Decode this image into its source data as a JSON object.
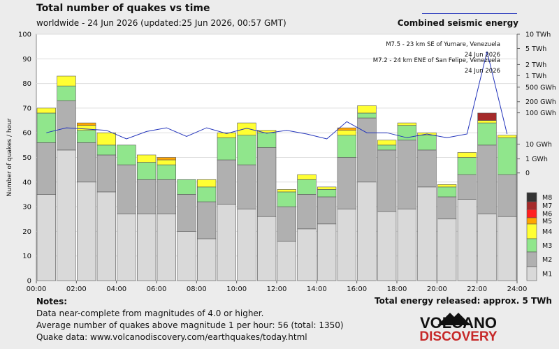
{
  "header": {
    "title": "Total number of quakes vs time",
    "subtitle": "worldwide - 24 Jun 2026 (updated:25 Jun 2026, 00:57 GMT)",
    "energy_legend": "Combined seismic energy"
  },
  "notes": {
    "heading": "Notes:",
    "line1": "Data near-complete from magnitudes of 4.0 or higher.",
    "line2": "Average number of quakes above magnitude 1 per hour: 56 (total: 1350)",
    "line3": "Quake data: www.volcanodiscovery.com/earthquakes/today.html"
  },
  "total_energy": "Total energy released: approx. 5 TWh",
  "logo": {
    "line1": "VOLCANO",
    "line2": "DISCOVERY"
  },
  "colors": {
    "M1": "#d9d9d9",
    "M2": "#b0b0b0",
    "M3": "#90e68c",
    "M4": "#ffff33",
    "M5": "#ffa500",
    "M6": "#ff2020",
    "M7": "#a52a2a",
    "M8": "#333333",
    "energy": "#2233bb",
    "background": "#ececec",
    "plot": "#ffffff"
  },
  "chart_data": {
    "type": "bar",
    "stacked": true,
    "ylabel": "Number of quakes / hour",
    "ylim": [
      0,
      100
    ],
    "yticks": [
      0,
      10,
      20,
      30,
      40,
      50,
      60,
      70,
      80,
      90,
      100
    ],
    "xticks": [
      "00:00",
      "02:00",
      "04:00",
      "06:00",
      "08:00",
      "10:00",
      "12:00",
      "14:00",
      "16:00",
      "18:00",
      "20:00",
      "22:00",
      "24:00"
    ],
    "hours": 24,
    "legend": [
      "M8",
      "M7",
      "M6",
      "M5",
      "M4",
      "M3",
      "M2",
      "M1"
    ],
    "series": [
      {
        "name": "M1",
        "values": [
          35,
          53,
          40,
          36,
          27,
          27,
          27,
          20,
          17,
          31,
          29,
          26,
          16,
          21,
          23,
          29,
          40,
          28,
          29,
          38,
          25,
          33,
          27,
          26
        ]
      },
      {
        "name": "M2",
        "values": [
          21,
          20,
          16,
          15,
          20,
          14,
          14,
          15,
          15,
          18,
          18,
          28,
          14,
          14,
          11,
          21,
          26,
          25,
          28,
          15,
          9,
          10,
          28,
          17
        ]
      },
      {
        "name": "M3",
        "values": [
          12,
          6,
          5,
          4,
          8,
          7,
          6,
          6,
          6,
          9,
          12,
          6,
          6,
          6,
          3,
          9,
          2,
          2,
          6,
          6,
          4,
          7,
          9,
          15
        ]
      },
      {
        "name": "M4",
        "values": [
          2,
          4,
          2,
          5,
          0,
          3,
          2,
          0,
          3,
          2,
          5,
          1,
          1,
          2,
          1,
          2,
          3,
          2,
          1,
          1,
          1,
          2,
          1,
          1
        ]
      },
      {
        "name": "M5",
        "values": [
          0,
          0,
          1,
          0,
          0,
          0,
          1,
          0,
          0,
          0,
          0,
          0,
          0,
          0,
          0,
          1,
          0,
          0,
          0,
          0,
          0,
          0,
          0,
          0
        ]
      },
      {
        "name": "M6",
        "values": [
          0,
          0,
          0,
          0,
          0,
          0,
          0,
          0,
          0,
          0,
          0,
          0,
          0,
          0,
          0,
          0,
          0,
          0,
          0,
          0,
          0,
          0,
          0,
          0
        ]
      },
      {
        "name": "M7",
        "values": [
          0,
          0,
          0,
          0,
          0,
          0,
          0,
          0,
          0,
          0,
          0,
          0,
          0,
          0,
          0,
          0,
          0,
          0,
          0,
          0,
          0,
          0,
          3,
          0
        ]
      },
      {
        "name": "M8",
        "values": [
          0,
          0,
          0,
          0,
          0,
          0,
          0,
          0,
          0,
          0,
          0,
          0,
          0,
          0,
          0,
          0,
          0,
          0,
          0,
          0,
          0,
          0,
          0,
          0
        ]
      }
    ],
    "energy_axis": {
      "label": "Combined seismic energy",
      "ticks": [
        "10 TWh",
        "5 TWh",
        "2 TWh",
        "1 TWh",
        "500 GWh",
        "200 GWh",
        "100 GWh",
        "10 GWh",
        "1 GWh",
        "0"
      ],
      "tick_y_equiv": [
        100,
        94.2,
        87.7,
        83.2,
        78.5,
        72.6,
        68.1,
        55.4,
        49.4,
        43.7
      ]
    },
    "energy_line_y_equiv": [
      60,
      62,
      61.5,
      61,
      57.5,
      60.5,
      62,
      58.5,
      62,
      59.7,
      61.8,
      59.8,
      61,
      59.5,
      57.5,
      64.5,
      60,
      60,
      58,
      59.5,
      58,
      59.5,
      93,
      59.5
    ],
    "annotations": [
      {
        "text": "M7.5 - 23 km SE of Yumare, Venezuela",
        "date": "24 Jun 2026"
      },
      {
        "text": "M7.2 - 24 km ENE of San Felipe, Venezuela",
        "date": "24 Jun 2026"
      }
    ]
  }
}
